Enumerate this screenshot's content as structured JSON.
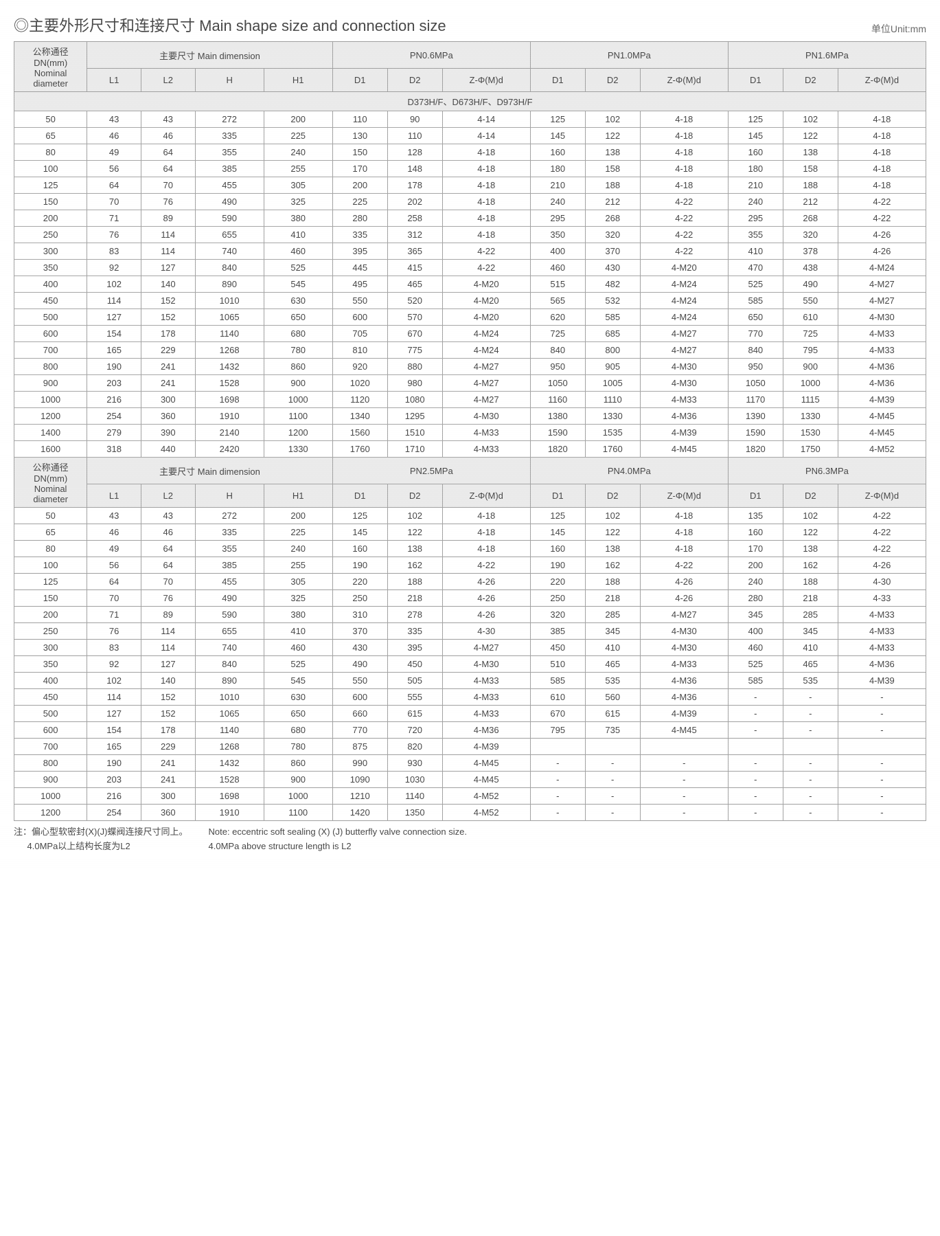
{
  "title": "◎主要外形尺寸和连接尺寸 Main shape size and connection size",
  "unit": "单位Unit:mm",
  "header": {
    "nominal": "公称通径\nDN(mm)\nNominal diameter",
    "main_dim": "主要尺寸 Main dimension",
    "l1": "L1",
    "l2": "L2",
    "h": "H",
    "h1": "H1",
    "d1": "D1",
    "d2": "D2",
    "z": "Z-Φ(M)d"
  },
  "group1": {
    "pressures": [
      "PN0.6MPa",
      "PN1.0MPa",
      "PN1.6MPa"
    ],
    "section": "D373H/F、D673H/F、D973H/F",
    "rows": [
      [
        "50",
        "43",
        "43",
        "272",
        "200",
        "110",
        "90",
        "4-14",
        "125",
        "102",
        "4-18",
        "125",
        "102",
        "4-18"
      ],
      [
        "65",
        "46",
        "46",
        "335",
        "225",
        "130",
        "110",
        "4-14",
        "145",
        "122",
        "4-18",
        "145",
        "122",
        "4-18"
      ],
      [
        "80",
        "49",
        "64",
        "355",
        "240",
        "150",
        "128",
        "4-18",
        "160",
        "138",
        "4-18",
        "160",
        "138",
        "4-18"
      ],
      [
        "100",
        "56",
        "64",
        "385",
        "255",
        "170",
        "148",
        "4-18",
        "180",
        "158",
        "4-18",
        "180",
        "158",
        "4-18"
      ],
      [
        "125",
        "64",
        "70",
        "455",
        "305",
        "200",
        "178",
        "4-18",
        "210",
        "188",
        "4-18",
        "210",
        "188",
        "4-18"
      ],
      [
        "150",
        "70",
        "76",
        "490",
        "325",
        "225",
        "202",
        "4-18",
        "240",
        "212",
        "4-22",
        "240",
        "212",
        "4-22"
      ],
      [
        "200",
        "71",
        "89",
        "590",
        "380",
        "280",
        "258",
        "4-18",
        "295",
        "268",
        "4-22",
        "295",
        "268",
        "4-22"
      ],
      [
        "250",
        "76",
        "114",
        "655",
        "410",
        "335",
        "312",
        "4-18",
        "350",
        "320",
        "4-22",
        "355",
        "320",
        "4-26"
      ],
      [
        "300",
        "83",
        "114",
        "740",
        "460",
        "395",
        "365",
        "4-22",
        "400",
        "370",
        "4-22",
        "410",
        "378",
        "4-26"
      ],
      [
        "350",
        "92",
        "127",
        "840",
        "525",
        "445",
        "415",
        "4-22",
        "460",
        "430",
        "4-M20",
        "470",
        "438",
        "4-M24"
      ],
      [
        "400",
        "102",
        "140",
        "890",
        "545",
        "495",
        "465",
        "4-M20",
        "515",
        "482",
        "4-M24",
        "525",
        "490",
        "4-M27"
      ],
      [
        "450",
        "114",
        "152",
        "1010",
        "630",
        "550",
        "520",
        "4-M20",
        "565",
        "532",
        "4-M24",
        "585",
        "550",
        "4-M27"
      ],
      [
        "500",
        "127",
        "152",
        "1065",
        "650",
        "600",
        "570",
        "4-M20",
        "620",
        "585",
        "4-M24",
        "650",
        "610",
        "4-M30"
      ],
      [
        "600",
        "154",
        "178",
        "1140",
        "680",
        "705",
        "670",
        "4-M24",
        "725",
        "685",
        "4-M27",
        "770",
        "725",
        "4-M33"
      ],
      [
        "700",
        "165",
        "229",
        "1268",
        "780",
        "810",
        "775",
        "4-M24",
        "840",
        "800",
        "4-M27",
        "840",
        "795",
        "4-M33"
      ],
      [
        "800",
        "190",
        "241",
        "1432",
        "860",
        "920",
        "880",
        "4-M27",
        "950",
        "905",
        "4-M30",
        "950",
        "900",
        "4-M36"
      ],
      [
        "900",
        "203",
        "241",
        "1528",
        "900",
        "1020",
        "980",
        "4-M27",
        "1050",
        "1005",
        "4-M30",
        "1050",
        "1000",
        "4-M36"
      ],
      [
        "1000",
        "216",
        "300",
        "1698",
        "1000",
        "1120",
        "1080",
        "4-M27",
        "1160",
        "1110",
        "4-M33",
        "1170",
        "1115",
        "4-M39"
      ],
      [
        "1200",
        "254",
        "360",
        "1910",
        "1100",
        "1340",
        "1295",
        "4-M30",
        "1380",
        "1330",
        "4-M36",
        "1390",
        "1330",
        "4-M45"
      ],
      [
        "1400",
        "279",
        "390",
        "2140",
        "1200",
        "1560",
        "1510",
        "4-M33",
        "1590",
        "1535",
        "4-M39",
        "1590",
        "1530",
        "4-M45"
      ],
      [
        "1600",
        "318",
        "440",
        "2420",
        "1330",
        "1760",
        "1710",
        "4-M33",
        "1820",
        "1760",
        "4-M45",
        "1820",
        "1750",
        "4-M52"
      ]
    ]
  },
  "group2": {
    "pressures": [
      "PN2.5MPa",
      "PN4.0MPa",
      "PN6.3MPa"
    ],
    "rows": [
      [
        "50",
        "43",
        "43",
        "272",
        "200",
        "125",
        "102",
        "4-18",
        "125",
        "102",
        "4-18",
        "135",
        "102",
        "4-22"
      ],
      [
        "65",
        "46",
        "46",
        "335",
        "225",
        "145",
        "122",
        "4-18",
        "145",
        "122",
        "4-18",
        "160",
        "122",
        "4-22"
      ],
      [
        "80",
        "49",
        "64",
        "355",
        "240",
        "160",
        "138",
        "4-18",
        "160",
        "138",
        "4-18",
        "170",
        "138",
        "4-22"
      ],
      [
        "100",
        "56",
        "64",
        "385",
        "255",
        "190",
        "162",
        "4-22",
        "190",
        "162",
        "4-22",
        "200",
        "162",
        "4-26"
      ],
      [
        "125",
        "64",
        "70",
        "455",
        "305",
        "220",
        "188",
        "4-26",
        "220",
        "188",
        "4-26",
        "240",
        "188",
        "4-30"
      ],
      [
        "150",
        "70",
        "76",
        "490",
        "325",
        "250",
        "218",
        "4-26",
        "250",
        "218",
        "4-26",
        "280",
        "218",
        "4-33"
      ],
      [
        "200",
        "71",
        "89",
        "590",
        "380",
        "310",
        "278",
        "4-26",
        "320",
        "285",
        "4-M27",
        "345",
        "285",
        "4-M33"
      ],
      [
        "250",
        "76",
        "114",
        "655",
        "410",
        "370",
        "335",
        "4-30",
        "385",
        "345",
        "4-M30",
        "400",
        "345",
        "4-M33"
      ],
      [
        "300",
        "83",
        "114",
        "740",
        "460",
        "430",
        "395",
        "4-M27",
        "450",
        "410",
        "4-M30",
        "460",
        "410",
        "4-M33"
      ],
      [
        "350",
        "92",
        "127",
        "840",
        "525",
        "490",
        "450",
        "4-M30",
        "510",
        "465",
        "4-M33",
        "525",
        "465",
        "4-M36"
      ],
      [
        "400",
        "102",
        "140",
        "890",
        "545",
        "550",
        "505",
        "4-M33",
        "585",
        "535",
        "4-M36",
        "585",
        "535",
        "4-M39"
      ],
      [
        "450",
        "114",
        "152",
        "1010",
        "630",
        "600",
        "555",
        "4-M33",
        "610",
        "560",
        "4-M36",
        "-",
        "-",
        "-"
      ],
      [
        "500",
        "127",
        "152",
        "1065",
        "650",
        "660",
        "615",
        "4-M33",
        "670",
        "615",
        "4-M39",
        "-",
        "-",
        "-"
      ],
      [
        "600",
        "154",
        "178",
        "1140",
        "680",
        "770",
        "720",
        "4-M36",
        "795",
        "735",
        "4-M45",
        "-",
        "-",
        "-"
      ],
      [
        "700",
        "165",
        "229",
        "1268",
        "780",
        "875",
        "820",
        "4-M39",
        "",
        "",
        "",
        "",
        "",
        ""
      ],
      [
        "800",
        "190",
        "241",
        "1432",
        "860",
        "990",
        "930",
        "4-M45",
        "-",
        "-",
        "-",
        "-",
        "-",
        "-"
      ],
      [
        "900",
        "203",
        "241",
        "1528",
        "900",
        "1090",
        "1030",
        "4-M45",
        "-",
        "-",
        "-",
        "-",
        "-",
        "-"
      ],
      [
        "1000",
        "216",
        "300",
        "1698",
        "1000",
        "1210",
        "1140",
        "4-M52",
        "-",
        "-",
        "-",
        "-",
        "-",
        "-"
      ],
      [
        "1200",
        "254",
        "360",
        "1910",
        "1100",
        "1420",
        "1350",
        "4-M52",
        "-",
        "-",
        "-",
        "-",
        "-",
        "-"
      ]
    ]
  },
  "footnotes": {
    "cn1": "注：偏心型软密封(X)(J)蝶阀连接尺寸同上。",
    "cn2": "4.0MPa以上结构长度为L2",
    "en1": "Note: eccentric soft sealing (X) (J) butterfly valve connection size.",
    "en2": "4.0MPa above structure length is L2"
  }
}
